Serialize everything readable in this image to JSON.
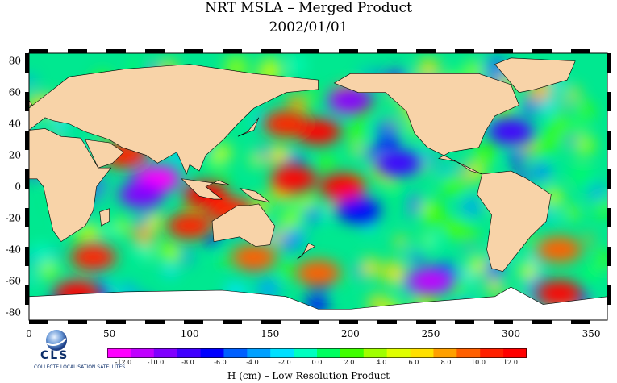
{
  "title": "NRT MSLA – Merged Product",
  "date": "2002/01/01",
  "logo": {
    "text": "CLS",
    "subtext": "COLLECTE LOCALISATION SATELLITES"
  },
  "colors": {
    "land": "#f8d3a8",
    "ice": "#ffffff",
    "scale": [
      "#ff00ff",
      "#c000ff",
      "#8000ff",
      "#4000ff",
      "#0000ff",
      "#0060ff",
      "#00a0ff",
      "#00e0ff",
      "#00ffc0",
      "#00ff60",
      "#40ff00",
      "#a0ff00",
      "#e0ff00",
      "#ffe000",
      "#ffa000",
      "#ff6000",
      "#ff2000",
      "#ff0000"
    ]
  },
  "chart_data": {
    "type": "heatmap",
    "x_ticks": [
      "0",
      "50",
      "100",
      "150",
      "200",
      "250",
      "300",
      "350"
    ],
    "y_ticks": [
      "80",
      "60",
      "40",
      "20",
      "0",
      "-20",
      "-40",
      "-60",
      "-80"
    ],
    "xlim": [
      0,
      360
    ],
    "ylim": [
      -85,
      85
    ],
    "colorbar": {
      "label": "H (cm) – Low Resolution Product",
      "min": -12,
      "max": 12,
      "ticks": [
        "-12.0",
        "-10.0",
        "-8.0",
        "-6.0",
        "-4.0",
        "-2.0",
        "0.0",
        "2.0",
        "4.0",
        "6.0",
        "8.0",
        "10.0",
        "12.0"
      ]
    },
    "anomalies": [
      {
        "lon": 80,
        "lat": 5,
        "h": -11
      },
      {
        "lon": 70,
        "lat": -5,
        "h": -9
      },
      {
        "lon": 60,
        "lat": 20,
        "h": 10
      },
      {
        "lon": 165,
        "lat": 5,
        "h": 12
      },
      {
        "lon": 195,
        "lat": 0,
        "h": 12
      },
      {
        "lon": 180,
        "lat": 35,
        "h": 11
      },
      {
        "lon": 160,
        "lat": 40,
        "h": 10
      },
      {
        "lon": 110,
        "lat": -5,
        "h": 11
      },
      {
        "lon": 125,
        "lat": -15,
        "h": 10
      },
      {
        "lon": 100,
        "lat": -25,
        "h": 10
      },
      {
        "lon": 140,
        "lat": -45,
        "h": 8
      },
      {
        "lon": 40,
        "lat": -45,
        "h": 10
      },
      {
        "lon": 230,
        "lat": 15,
        "h": -8
      },
      {
        "lon": 200,
        "lat": 55,
        "h": -9
      },
      {
        "lon": 250,
        "lat": -60,
        "h": -10
      },
      {
        "lon": 330,
        "lat": -40,
        "h": 9
      },
      {
        "lon": 30,
        "lat": -68,
        "h": 11
      },
      {
        "lon": 330,
        "lat": -68,
        "h": 11
      },
      {
        "lon": 205,
        "lat": -15,
        "h": -6
      },
      {
        "lon": 300,
        "lat": 35,
        "h": -7
      },
      {
        "lon": 180,
        "lat": -55,
        "h": 8
      }
    ]
  }
}
